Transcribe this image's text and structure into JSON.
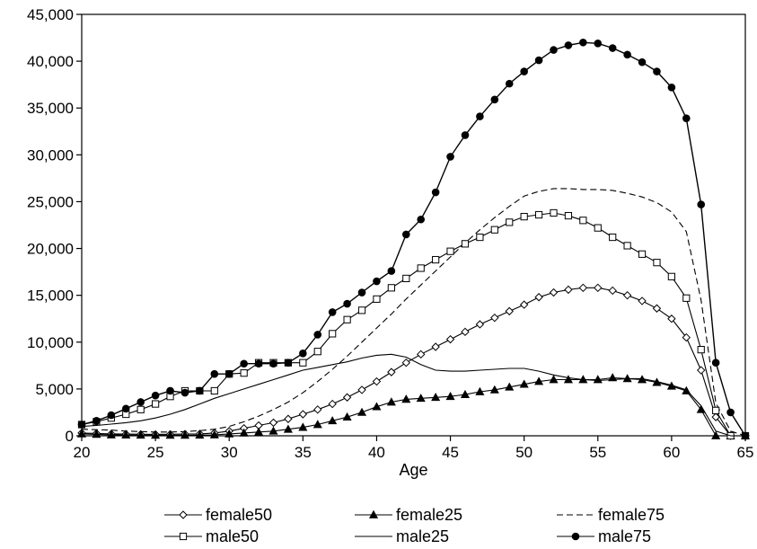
{
  "chart_data": {
    "type": "line",
    "title": "",
    "xlabel": "Age",
    "ylabel": "",
    "xlim": [
      20,
      65
    ],
    "ylim": [
      0,
      45000
    ],
    "x_ticks": [
      20,
      25,
      30,
      35,
      40,
      45,
      50,
      55,
      60,
      65
    ],
    "y_ticks": [
      0,
      5000,
      10000,
      15000,
      20000,
      25000,
      30000,
      35000,
      40000,
      45000
    ],
    "x_tick_labels": [
      "20",
      "25",
      "30",
      "35",
      "40",
      "45",
      "50",
      "55",
      "60",
      "65"
    ],
    "y_tick_labels": [
      "0",
      "5,000",
      "10,000",
      "15,000",
      "20,000",
      "25,000",
      "30,000",
      "35,000",
      "40,000",
      "45,000"
    ],
    "grid": false,
    "legend_position": "bottom",
    "x": [
      20,
      21,
      22,
      23,
      24,
      25,
      26,
      27,
      28,
      29,
      30,
      31,
      32,
      33,
      34,
      35,
      36,
      37,
      38,
      39,
      40,
      41,
      42,
      43,
      44,
      45,
      46,
      47,
      48,
      49,
      50,
      51,
      52,
      53,
      54,
      55,
      56,
      57,
      58,
      59,
      60,
      61,
      62,
      63,
      64,
      65
    ],
    "series": [
      {
        "name": "female50",
        "marker": "open-diamond",
        "line": "solid",
        "values": [
          300,
          250,
          200,
          180,
          160,
          150,
          160,
          180,
          200,
          300,
          500,
          800,
          1100,
          1400,
          1800,
          2300,
          2800,
          3400,
          4100,
          4900,
          5800,
          6800,
          7800,
          8700,
          9500,
          10300,
          11100,
          11900,
          12600,
          13300,
          14000,
          14800,
          15300,
          15600,
          15800,
          15800,
          15500,
          15000,
          14400,
          13600,
          12500,
          10500,
          7000,
          2000,
          0,
          0
        ]
      },
      {
        "name": "female25",
        "marker": "filled-triangle",
        "line": "solid",
        "values": [
          200,
          150,
          100,
          80,
          70,
          60,
          60,
          60,
          70,
          100,
          200,
          300,
          400,
          500,
          700,
          900,
          1200,
          1600,
          2000,
          2500,
          3100,
          3600,
          3900,
          4000,
          4100,
          4200,
          4400,
          4700,
          4900,
          5200,
          5500,
          5800,
          6000,
          6000,
          6000,
          6000,
          6200,
          6100,
          6000,
          5700,
          5300,
          4800,
          2800,
          0,
          0,
          0
        ]
      },
      {
        "name": "female75",
        "marker": "none",
        "line": "dashed",
        "values": [
          700,
          650,
          600,
          500,
          450,
          400,
          400,
          450,
          550,
          700,
          1000,
          1500,
          2100,
          2800,
          3600,
          4600,
          5800,
          7100,
          8500,
          10000,
          11500,
          13000,
          14600,
          16100,
          17600,
          19100,
          20600,
          22000,
          23300,
          24500,
          25600,
          26100,
          26400,
          26400,
          26300,
          26300,
          26200,
          25900,
          25500,
          24900,
          23900,
          21800,
          14500,
          3500,
          500,
          0
        ]
      },
      {
        "name": "male50",
        "marker": "open-square",
        "line": "solid",
        "values": [
          1200,
          1500,
          1900,
          2300,
          2800,
          3400,
          4200,
          4800,
          4800,
          4800,
          6600,
          6700,
          7800,
          7800,
          7800,
          7800,
          9000,
          10900,
          12400,
          13400,
          14600,
          15800,
          16800,
          17900,
          18800,
          19700,
          20500,
          21200,
          22000,
          22800,
          23400,
          23600,
          23800,
          23500,
          23000,
          22200,
          21200,
          20300,
          19400,
          18500,
          17000,
          14700,
          9200,
          2700,
          0,
          0
        ]
      },
      {
        "name": "male25",
        "marker": "none",
        "line": "solid",
        "values": [
          1000,
          1100,
          1250,
          1400,
          1600,
          1900,
          2300,
          2800,
          3400,
          4000,
          4500,
          5000,
          5500,
          6000,
          6500,
          7000,
          7300,
          7600,
          7900,
          8300,
          8600,
          8700,
          8400,
          7600,
          7000,
          6900,
          6900,
          7000,
          7100,
          7200,
          7200,
          6900,
          6500,
          6200,
          6000,
          5900,
          6000,
          6100,
          6100,
          5800,
          5400,
          4900,
          3200,
          500,
          0,
          0
        ]
      },
      {
        "name": "male75",
        "marker": "filled-circle",
        "line": "solid",
        "values": [
          1200,
          1600,
          2200,
          2900,
          3600,
          4300,
          4800,
          4600,
          4800,
          6600,
          6600,
          7700,
          7700,
          7700,
          7800,
          8800,
          10800,
          13200,
          14100,
          15300,
          16500,
          17600,
          21500,
          23100,
          26000,
          29800,
          32100,
          34100,
          35900,
          37600,
          38900,
          40100,
          41200,
          41700,
          42000,
          41900,
          41400,
          40700,
          39900,
          38900,
          37200,
          33900,
          24700,
          7800,
          2500,
          0
        ]
      }
    ],
    "colors": {
      "line": "#000000",
      "background": "#ffffff"
    }
  }
}
